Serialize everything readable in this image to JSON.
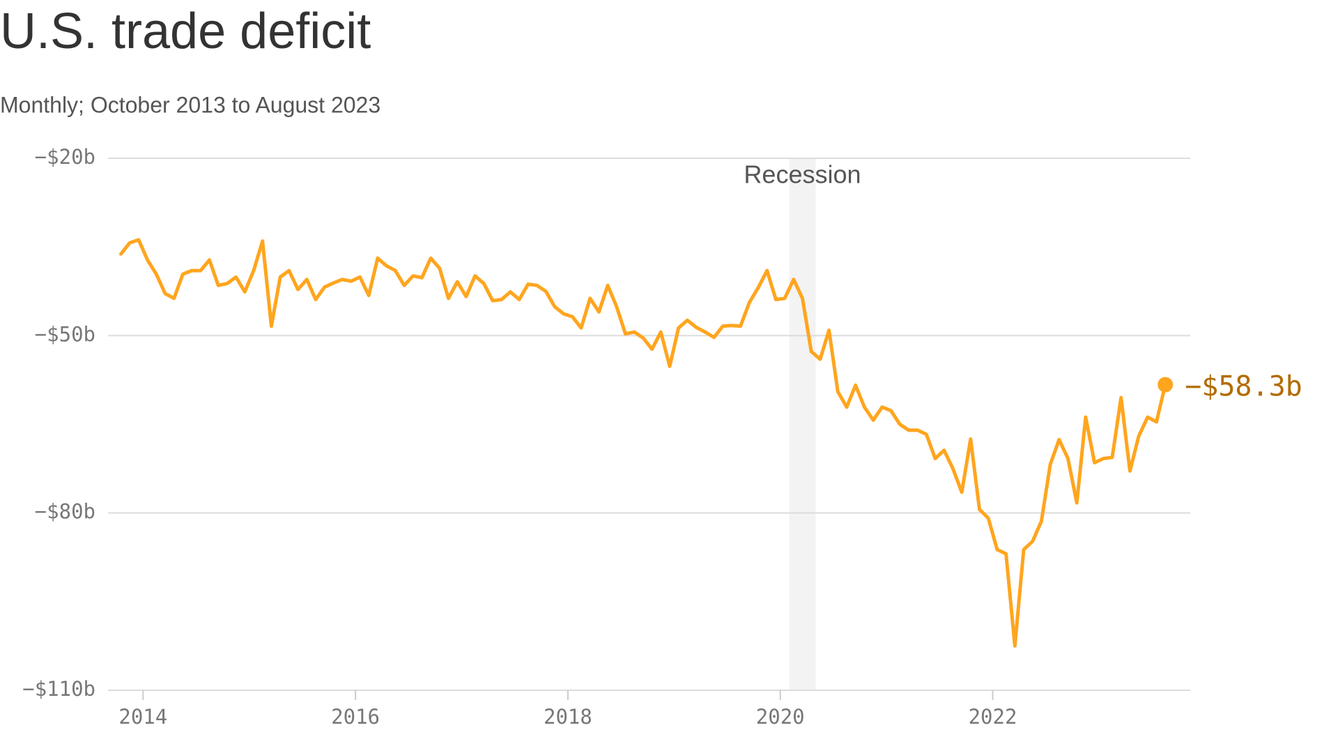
{
  "chart_data": {
    "type": "line",
    "title": "U.S. trade deficit",
    "subtitle": "Monthly; October 2013 to August 2023",
    "x": [
      "2013-10",
      "2013-11",
      "2013-12",
      "2014-01",
      "2014-02",
      "2014-03",
      "2014-04",
      "2014-05",
      "2014-06",
      "2014-07",
      "2014-08",
      "2014-09",
      "2014-10",
      "2014-11",
      "2014-12",
      "2015-01",
      "2015-02",
      "2015-03",
      "2015-04",
      "2015-05",
      "2015-06",
      "2015-07",
      "2015-08",
      "2015-09",
      "2015-10",
      "2015-11",
      "2015-12",
      "2016-01",
      "2016-02",
      "2016-03",
      "2016-04",
      "2016-05",
      "2016-06",
      "2016-07",
      "2016-08",
      "2016-09",
      "2016-10",
      "2016-11",
      "2016-12",
      "2017-01",
      "2017-02",
      "2017-03",
      "2017-04",
      "2017-05",
      "2017-06",
      "2017-07",
      "2017-08",
      "2017-09",
      "2017-10",
      "2017-11",
      "2017-12",
      "2018-01",
      "2018-02",
      "2018-03",
      "2018-04",
      "2018-05",
      "2018-06",
      "2018-07",
      "2018-08",
      "2018-09",
      "2018-10",
      "2018-11",
      "2018-12",
      "2019-01",
      "2019-02",
      "2019-03",
      "2019-04",
      "2019-05",
      "2019-06",
      "2019-07",
      "2019-08",
      "2019-09",
      "2019-10",
      "2019-11",
      "2019-12",
      "2020-01",
      "2020-02",
      "2020-03",
      "2020-04",
      "2020-05",
      "2020-06",
      "2020-07",
      "2020-08",
      "2020-09",
      "2020-10",
      "2020-11",
      "2020-12",
      "2021-01",
      "2021-02",
      "2021-03",
      "2021-04",
      "2021-05",
      "2021-06",
      "2021-07",
      "2021-08",
      "2021-09",
      "2021-10",
      "2021-11",
      "2021-12",
      "2022-01",
      "2022-02",
      "2022-03",
      "2022-04",
      "2022-05",
      "2022-06",
      "2022-07",
      "2022-08",
      "2022-09",
      "2022-10",
      "2022-11",
      "2022-12",
      "2023-01",
      "2023-02",
      "2023-03",
      "2023-04",
      "2023-05",
      "2023-06",
      "2023-07",
      "2023-08"
    ],
    "series": [
      {
        "color": "#ffa51e",
        "values": [
          -36.2,
          -34.3,
          -33.8,
          -37.2,
          -39.6,
          -42.9,
          -43.7,
          -39.6,
          -39.0,
          -39.0,
          -37.2,
          -41.5,
          -41.2,
          -40.1,
          -42.6,
          -39.0,
          -34.0,
          -48.4,
          -40.1,
          -39.0,
          -42.2,
          -40.5,
          -43.9,
          -41.8,
          -41.1,
          -40.5,
          -40.8,
          -40.1,
          -43.2,
          -36.9,
          -38.2,
          -39.0,
          -41.5,
          -39.9,
          -40.2,
          -36.9,
          -38.6,
          -43.7,
          -40.9,
          -43.4,
          -39.9,
          -41.2,
          -44.1,
          -43.9,
          -42.6,
          -43.9,
          -41.3,
          -41.5,
          -42.5,
          -45.1,
          -46.3,
          -46.8,
          -48.7,
          -43.7,
          -46.0,
          -41.5,
          -45.1,
          -49.7,
          -49.4,
          -50.4,
          -52.3,
          -49.4,
          -55.2,
          -48.7,
          -47.4,
          -48.6,
          -49.4,
          -50.3,
          -48.4,
          -48.3,
          -48.4,
          -44.4,
          -41.9,
          -39.0,
          -43.9,
          -43.7,
          -40.5,
          -43.7,
          -52.7,
          -54.0,
          -49.1,
          -59.5,
          -62.1,
          -58.4,
          -62.1,
          -64.3,
          -62.1,
          -62.7,
          -65.0,
          -66.0,
          -66.0,
          -66.7,
          -70.8,
          -69.4,
          -72.5,
          -76.5,
          -67.5,
          -79.4,
          -80.9,
          -86.2,
          -86.9,
          -102.5,
          -86.2,
          -84.8,
          -81.4,
          -71.8,
          -67.6,
          -70.8,
          -78.3,
          -63.8,
          -71.5,
          -70.8,
          -70.6,
          -60.5,
          -72.9,
          -67.0,
          -63.8,
          -64.6,
          -58.3
        ]
      }
    ],
    "last_label": "−$58.3b",
    "last_label_color": "#b36b00",
    "recession": {
      "label": "Recession",
      "start": "2020-02",
      "end": "2020-04",
      "color": "#f3f3f3"
    },
    "xlim": [
      2013.67,
      2023.86
    ],
    "xticks": [
      2014,
      2016,
      2018,
      2020,
      2022
    ],
    "ylim": [
      -110,
      -20
    ],
    "yticks": [
      {
        "value": -20,
        "label": "−$20b"
      },
      {
        "value": -50,
        "label": "−$50b"
      },
      {
        "value": -80,
        "label": "−$80b"
      },
      {
        "value": -110,
        "label": "−$110b"
      }
    ],
    "grid": true
  }
}
